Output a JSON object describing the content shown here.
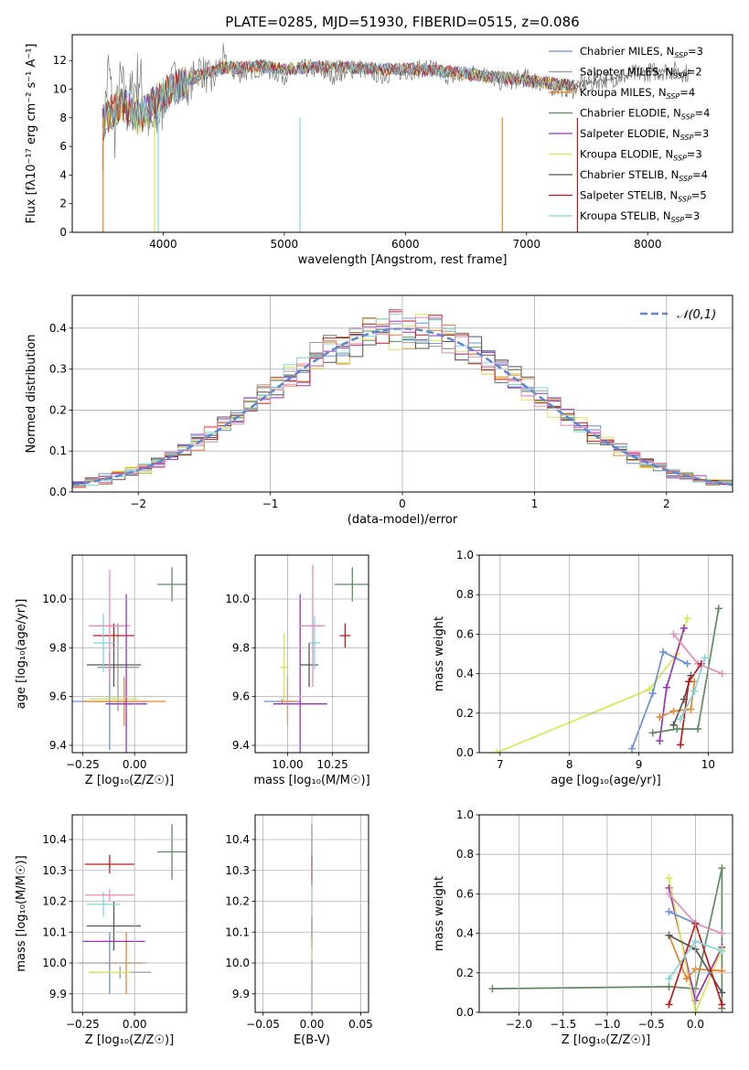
{
  "figure_title": "PLATE=0285, MJD=51930, FIBERID=0515, z=0.086",
  "palette": {
    "Chabrier MILES": "#6a8fd8",
    "Salpeter MILES": "#9a9a9a",
    "Kroupa MILES": "#e8842a",
    "Chabrier ELODIE": "#5e8a5e",
    "Salpeter ELODIE": "#9b30c0",
    "Kroupa ELODIE": "#d8e84a",
    "Chabrier STELIB": "#555555",
    "Salpeter STELIB": "#c01818",
    "Kroupa STELIB": "#7fd6e0",
    "pink": "#e88ab8",
    "normal": "#5b87d6"
  },
  "chart_data": [
    {
      "id": "spectrum",
      "type": "line",
      "title": "PLATE=0285, MJD=51930, FIBERID=0515, z=0.086",
      "xlabel": "wavelength [Angstrom, rest frame]",
      "ylabel": "Flux [fλ10⁻¹⁷ erg cm⁻² s⁻¹ A⁻¹]",
      "xlim": [
        3250,
        8700
      ],
      "ylim": [
        0,
        13.8
      ],
      "xticks": [
        "4000",
        "5000",
        "6000",
        "7000",
        "8000"
      ],
      "yticks": [
        "0",
        "2",
        "4",
        "6",
        "8",
        "10",
        "12"
      ],
      "grid": false,
      "legend_position": "top-right",
      "legend": [
        {
          "label": "Chabrier MILES, N",
          "sub": "SSP",
          "post": "=3"
        },
        {
          "label": "Salpeter MILES, N",
          "sub": "SSP",
          "post": "=2"
        },
        {
          "label": "Kroupa MILES, N",
          "sub": "SSP",
          "post": "=4"
        },
        {
          "label": "Chabrier ELODIE, N",
          "sub": "SSP",
          "post": "=4"
        },
        {
          "label": "Salpeter ELODIE, N",
          "sub": "SSP",
          "post": "=3"
        },
        {
          "label": "Kroupa ELODIE, N",
          "sub": "SSP",
          "post": "=3"
        },
        {
          "label": "Chabrier STELIB, N",
          "sub": "SSP",
          "post": "=4"
        },
        {
          "label": "Salpeter STELIB, N",
          "sub": "SSP",
          "post": "=5"
        },
        {
          "label": "Kroupa STELIB, N",
          "sub": "SSP",
          "post": "=3"
        }
      ],
      "data": {
        "x": [
          3500,
          3550,
          3600,
          3650,
          3700,
          3800,
          3900,
          4000,
          4100,
          4200,
          4300,
          4400,
          4500,
          4600,
          4800,
          5000,
          5200,
          5400,
          5600,
          5800,
          6000,
          6200,
          6400,
          6600,
          6800,
          7000,
          7200,
          7400
        ],
        "observed": [
          6.5,
          11.5,
          7.0,
          10.5,
          8.5,
          11.0,
          7.0,
          9.0,
          11.0,
          10.0,
          11.5,
          10.5,
          12.0,
          11.0,
          11.5,
          11.0,
          11.5,
          11.0,
          11.5,
          11.0,
          11.3,
          11.5,
          10.8,
          11.2,
          10.5,
          10.8,
          10.2,
          10.0
        ],
        "model": [
          7.5,
          8.2,
          8.5,
          9.0,
          8.8,
          8.0,
          8.8,
          9.6,
          10.2,
          10.6,
          11.0,
          11.2,
          11.5,
          11.5,
          11.6,
          11.4,
          11.5,
          11.6,
          11.5,
          11.4,
          11.4,
          11.3,
          11.2,
          11.0,
          10.8,
          10.6,
          10.4,
          10.2
        ],
        "tail_x": [
          7400,
          7600,
          7800,
          8000,
          8200,
          8400
        ],
        "tail": [
          10.2,
          10.6,
          10.9,
          11.2,
          11.3,
          11.0
        ]
      }
    },
    {
      "id": "residuals",
      "type": "bar",
      "xlabel": "(data-model)/error",
      "ylabel": "Normed distribution",
      "xlim": [
        -2.5,
        2.5
      ],
      "ylim": [
        0,
        0.48
      ],
      "xticks": [
        "−2",
        "−1",
        "0",
        "1",
        "2"
      ],
      "yticks": [
        "0.0",
        "0.1",
        "0.2",
        "0.3",
        "0.4"
      ],
      "grid": true,
      "legend_position": "top-right",
      "legend": [
        {
          "label": "𝒩(0,1)"
        }
      ],
      "data": {
        "bin_width": 0.1,
        "normal_mu": 0,
        "normal_sigma": 1
      }
    },
    {
      "id": "z-age",
      "type": "scatter",
      "xlabel": "Z [log₁₀(Z/Z☉)]",
      "ylabel": "age  [log₁₀(age/yr)]",
      "xlim": [
        -0.3,
        0.25
      ],
      "ylim": [
        9.37,
        10.18
      ],
      "xticks": [
        "−0.25",
        "0.00"
      ],
      "yticks": [
        "9.4",
        "9.6",
        "9.8",
        "10.0"
      ],
      "grid": true,
      "points": [
        {
          "x": -0.12,
          "y": 9.58,
          "xe": 0.18,
          "ye": 0.2,
          "c": "Chabrier MILES"
        },
        {
          "x": -0.05,
          "y": 9.58,
          "xe": 0.2,
          "ye": 0.1,
          "c": "Kroupa MILES"
        },
        {
          "x": -0.08,
          "y": 9.72,
          "xe": 0.1,
          "ye": 0.18,
          "c": "Salpeter MILES"
        },
        {
          "x": -0.1,
          "y": 9.73,
          "xe": 0.13,
          "ye": 0.09,
          "c": "Chabrier STELIB"
        },
        {
          "x": -0.1,
          "y": 9.85,
          "xe": 0.1,
          "ye": 0.05,
          "c": "Salpeter STELIB"
        },
        {
          "x": -0.15,
          "y": 9.82,
          "xe": 0.05,
          "ye": 0.12,
          "c": "Kroupa STELIB"
        },
        {
          "x": -0.12,
          "y": 9.89,
          "xe": 0.1,
          "ye": 0.23,
          "c": "pink"
        },
        {
          "x": -0.1,
          "y": 9.59,
          "xe": 0.12,
          "ye": 0.01,
          "c": "Kroupa ELODIE"
        },
        {
          "x": -0.04,
          "y": 9.57,
          "xe": 0.1,
          "ye": 0.45,
          "c": "Salpeter ELODIE"
        },
        {
          "x": 0.18,
          "y": 10.06,
          "xe": 0.07,
          "ye": 0.07,
          "c": "Chabrier ELODIE"
        }
      ]
    },
    {
      "id": "mass-age",
      "type": "scatter",
      "xlabel": "mass [log₁₀(M/M☉)]",
      "ylabel": "",
      "xlim": [
        9.82,
        10.45
      ],
      "ylim": [
        9.37,
        10.18
      ],
      "xticks": [
        "10.00",
        "10.25"
      ],
      "yticks": [
        "9.4",
        "9.6",
        "9.8",
        "10.0"
      ],
      "grid": true,
      "points": [
        {
          "x": 9.97,
          "y": 9.58,
          "xe": 0.1,
          "ye": 0.01,
          "c": "Chabrier MILES"
        },
        {
          "x": 10.0,
          "y": 9.58,
          "xe": 0.05,
          "ye": 0.1,
          "c": "Kroupa MILES"
        },
        {
          "x": 9.98,
          "y": 9.72,
          "xe": 0.02,
          "ye": 0.14,
          "c": "Kroupa ELODIE"
        },
        {
          "x": 10.07,
          "y": 9.57,
          "xe": 0.15,
          "ye": 0.45,
          "c": "Salpeter ELODIE"
        },
        {
          "x": 10.12,
          "y": 9.73,
          "xe": 0.05,
          "ye": 0.09,
          "c": "Chabrier STELIB"
        },
        {
          "x": 10.15,
          "y": 9.82,
          "xe": 0.03,
          "ye": 0.11,
          "c": "Kroupa STELIB"
        },
        {
          "x": 10.14,
          "y": 9.89,
          "xe": 0.07,
          "ye": 0.25,
          "c": "pink"
        },
        {
          "x": 10.32,
          "y": 9.85,
          "xe": 0.03,
          "ye": 0.05,
          "c": "Salpeter STELIB"
        },
        {
          "x": 10.36,
          "y": 10.06,
          "xe": 0.1,
          "ye": 0.07,
          "c": "Chabrier ELODIE"
        }
      ]
    },
    {
      "id": "weight-age",
      "type": "line",
      "xlabel": "age  [log₁₀(age/yr)]",
      "ylabel": "mass weight",
      "xlim": [
        6.7,
        10.35
      ],
      "ylim": [
        0,
        1
      ],
      "xticks": [
        "7",
        "8",
        "9",
        "10"
      ],
      "yticks": [
        "0.0",
        "0.2",
        "0.4",
        "0.6",
        "0.8",
        "1.0"
      ],
      "grid": true,
      "series": [
        {
          "c": "Kroupa ELODIE",
          "x": [
            6.95,
            9.15,
            9.55,
            9.7
          ],
          "y": [
            0.0,
            0.32,
            0.5,
            0.68
          ]
        },
        {
          "c": "Chabrier MILES",
          "x": [
            8.9,
            9.2,
            9.35,
            9.7
          ],
          "y": [
            0.02,
            0.3,
            0.51,
            0.45
          ]
        },
        {
          "c": "Salpeter ELODIE",
          "x": [
            9.3,
            9.4,
            9.65
          ],
          "y": [
            0.06,
            0.33,
            0.63
          ]
        },
        {
          "c": "pink",
          "x": [
            9.5,
            9.85,
            10.2
          ],
          "y": [
            0.6,
            0.45,
            0.4
          ]
        },
        {
          "c": "Kroupa MILES",
          "x": [
            9.3,
            9.5,
            9.75,
            9.8
          ],
          "y": [
            0.18,
            0.21,
            0.22,
            0.36
          ]
        },
        {
          "c": "Chabrier ELODIE",
          "x": [
            9.2,
            9.55,
            9.85,
            10.15
          ],
          "y": [
            0.1,
            0.12,
            0.12,
            0.73
          ]
        },
        {
          "c": "Chabrier STELIB",
          "x": [
            9.5,
            9.65,
            9.75
          ],
          "y": [
            0.14,
            0.27,
            0.39
          ]
        },
        {
          "c": "Salpeter STELIB",
          "x": [
            9.6,
            9.72,
            9.9
          ],
          "y": [
            0.04,
            0.36,
            0.45
          ]
        },
        {
          "c": "Kroupa STELIB",
          "x": [
            9.6,
            9.8,
            9.95
          ],
          "y": [
            0.17,
            0.31,
            0.48
          ]
        }
      ]
    },
    {
      "id": "z-mass",
      "type": "scatter",
      "xlabel": "Z [log₁₀(Z/Z☉)]",
      "ylabel": "mass [log₁₀(M/M☉)]",
      "xlim": [
        -0.3,
        0.25
      ],
      "ylim": [
        9.84,
        10.48
      ],
      "xticks": [
        "−0.25",
        "0.00"
      ],
      "yticks": [
        "9.9",
        "10.0",
        "10.1",
        "10.2",
        "10.3",
        "10.4"
      ],
      "grid": true,
      "points": [
        {
          "x": -0.12,
          "y": 10.0,
          "xe": 0.15,
          "ye": 0.1,
          "c": "Chabrier MILES"
        },
        {
          "x": -0.07,
          "y": 9.97,
          "xe": 0.15,
          "ye": 0.02,
          "c": "Salpeter MILES"
        },
        {
          "x": -0.04,
          "y": 10.0,
          "xe": 0.1,
          "ye": 0.1,
          "c": "Kroupa MILES"
        },
        {
          "x": -0.12,
          "y": 9.97,
          "xe": 0.1,
          "ye": 0.0,
          "c": "Kroupa ELODIE"
        },
        {
          "x": -0.1,
          "y": 10.12,
          "xe": 0.13,
          "ye": 0.08,
          "c": "Chabrier STELIB"
        },
        {
          "x": -0.12,
          "y": 10.32,
          "xe": 0.12,
          "ye": 0.03,
          "c": "Salpeter STELIB"
        },
        {
          "x": -0.15,
          "y": 10.19,
          "xe": 0.08,
          "ye": 0.04,
          "c": "Kroupa STELIB"
        },
        {
          "x": -0.12,
          "y": 10.22,
          "xe": 0.12,
          "ye": 0.02,
          "c": "pink"
        },
        {
          "x": -0.1,
          "y": 10.07,
          "xe": 0.15,
          "ye": 0.0,
          "c": "Salpeter ELODIE"
        },
        {
          "x": 0.18,
          "y": 10.36,
          "xe": 0.07,
          "ye": 0.09,
          "c": "Chabrier ELODIE"
        }
      ]
    },
    {
      "id": "ebv-mass",
      "type": "scatter",
      "xlabel": "E(B-V)",
      "ylabel": "",
      "xlim": [
        -0.058,
        0.058
      ],
      "ylim": [
        9.84,
        10.48
      ],
      "xticks": [
        "−0.05",
        "0.00",
        "0.05"
      ],
      "yticks": [
        "9.9",
        "10.0",
        "10.1",
        "10.2",
        "10.3",
        "10.4"
      ],
      "grid": true,
      "points": [
        {
          "x": 0,
          "y": 10.36,
          "xe": 0,
          "ye": 0.09,
          "c": "Chabrier ELODIE"
        },
        {
          "x": 0,
          "y": 10.3,
          "xe": 0,
          "ye": 0.05,
          "c": "Salpeter STELIB"
        },
        {
          "x": 0,
          "y": 10.2,
          "xe": 0,
          "ye": 0.05,
          "c": "Kroupa STELIB"
        },
        {
          "x": 0,
          "y": 10.1,
          "xe": 0,
          "ye": 0.05,
          "c": "Chabrier STELIB"
        },
        {
          "x": 0,
          "y": 10.0,
          "xe": 0,
          "ye": 0.08,
          "c": "Kroupa ELODIE"
        },
        {
          "x": 0,
          "y": 9.93,
          "xe": 0,
          "ye": 0.08,
          "c": "Chabrier MILES"
        }
      ]
    },
    {
      "id": "weight-z",
      "type": "line",
      "xlabel": "Z [log₁₀(Z/Z☉)]",
      "ylabel": "mass weight",
      "xlim": [
        -2.45,
        0.42
      ],
      "ylim": [
        0,
        1
      ],
      "xticks": [
        "−2.0",
        "−1.5",
        "−1.0",
        "−0.5",
        "0.0"
      ],
      "yticks": [
        "0.0",
        "0.2",
        "0.4",
        "0.6",
        "0.8",
        "1.0"
      ],
      "grid": true,
      "series": [
        {
          "c": "Chabrier ELODIE",
          "x": [
            -2.3,
            -0.3,
            0.0,
            0.3,
            0.3
          ],
          "y": [
            0.12,
            0.13,
            0.12,
            0.73,
            0.02
          ]
        },
        {
          "c": "Salpeter ELODIE",
          "x": [
            -0.3,
            0.0,
            0.3
          ],
          "y": [
            0.63,
            0.06,
            0.33
          ]
        },
        {
          "c": "Kroupa ELODIE",
          "x": [
            -0.3,
            0.0,
            0.3
          ],
          "y": [
            0.68,
            0.0,
            0.32
          ]
        },
        {
          "c": "Chabrier MILES",
          "x": [
            -0.3,
            0.0
          ],
          "y": [
            0.51,
            0.45
          ]
        },
        {
          "c": "pink",
          "x": [
            -0.3,
            0.0,
            0.3
          ],
          "y": [
            0.6,
            0.45,
            0.4
          ]
        },
        {
          "c": "Kroupa MILES",
          "x": [
            -0.3,
            -0.1,
            0.0,
            0.3
          ],
          "y": [
            0.39,
            0.17,
            0.22,
            0.21
          ]
        },
        {
          "c": "Chabrier STELIB",
          "x": [
            -0.3,
            0.0,
            0.3
          ],
          "y": [
            0.39,
            0.32,
            0.1
          ]
        },
        {
          "c": "Salpeter STELIB",
          "x": [
            -0.3,
            0.0,
            0.3
          ],
          "y": [
            0.04,
            0.45,
            0.04
          ]
        },
        {
          "c": "Kroupa STELIB",
          "x": [
            -0.3,
            0.0,
            0.3
          ],
          "y": [
            0.17,
            0.36,
            0.31
          ]
        }
      ]
    }
  ]
}
